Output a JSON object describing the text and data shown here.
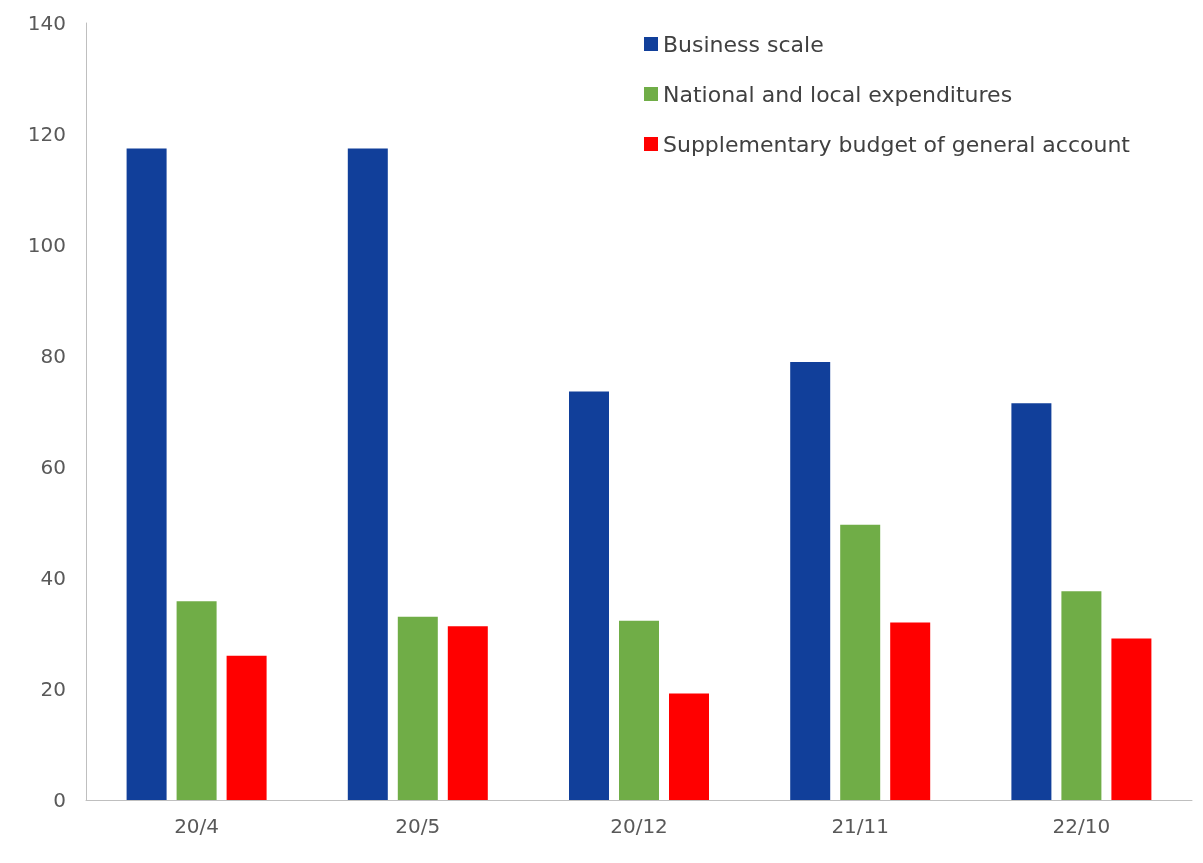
{
  "chart_data": {
    "type": "bar",
    "categories": [
      "20/4",
      "20/5",
      "20/12",
      "21/11",
      "22/10"
    ],
    "series": [
      {
        "name": "Business scale",
        "color": "#113f9a",
        "values": [
          117.4,
          117.4,
          73.6,
          78.9,
          71.5
        ]
      },
      {
        "name": "National and local expenditures",
        "color": "#70ad47",
        "values": [
          35.8,
          33.0,
          32.3,
          49.6,
          37.6
        ]
      },
      {
        "name": "Supplementary budget of general account",
        "color": "#ff0000",
        "values": [
          26.0,
          31.3,
          19.2,
          32.0,
          29.1
        ]
      }
    ],
    "ylim": [
      0,
      140
    ],
    "yticks": [
      0,
      20,
      40,
      60,
      80,
      100,
      120,
      140
    ],
    "grid": false,
    "legend": "top right"
  }
}
